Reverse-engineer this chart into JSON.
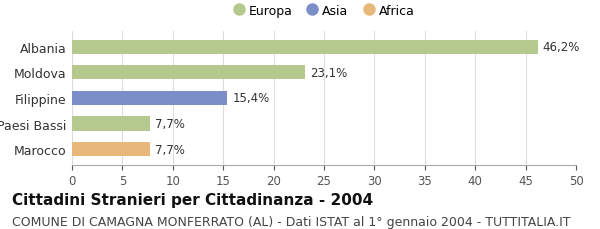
{
  "categories": [
    "Albania",
    "Moldova",
    "Filippine",
    "Paesi Bassi",
    "Marocco"
  ],
  "values": [
    46.2,
    23.1,
    15.4,
    7.7,
    7.7
  ],
  "bar_colors": [
    "#b5c98e",
    "#b5c98e",
    "#7b8ec8",
    "#b5c98e",
    "#e8b87a"
  ],
  "continent_colors": {
    "Europa": "#b5c98e",
    "Asia": "#7b8ec8",
    "Africa": "#e8b87a"
  },
  "labels": [
    "46,2%",
    "23,1%",
    "15,4%",
    "7,7%",
    "7,7%"
  ],
  "xlim": [
    0,
    50
  ],
  "xticks": [
    0,
    5,
    10,
    15,
    20,
    25,
    30,
    35,
    40,
    45,
    50
  ],
  "title": "Cittadini Stranieri per Cittadinanza - 2004",
  "subtitle": "COMUNE DI CAMAGNA MONFERRATO (AL) - Dati ISTAT al 1° gennaio 2004 - TUTTITALIA.IT",
  "legend_entries": [
    "Europa",
    "Asia",
    "Africa"
  ],
  "background_color": "#ffffff",
  "grid_color": "#dddddd",
  "title_fontsize": 11,
  "subtitle_fontsize": 9,
  "bar_height": 0.55
}
